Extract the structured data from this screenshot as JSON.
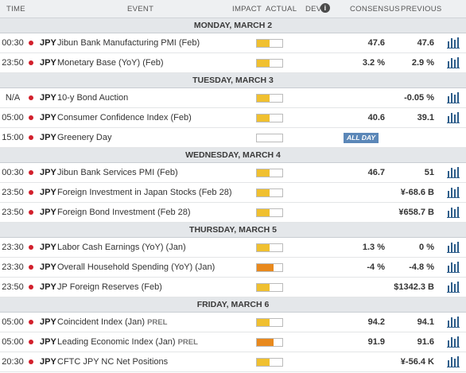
{
  "header": {
    "time": "TIME",
    "event": "EVENT",
    "impact": "IMPACT",
    "actual": "ACTUAL",
    "dev": "DEV",
    "info": "i",
    "consensus": "CONSENSUS",
    "previous": "PREVIOUS"
  },
  "days": [
    {
      "label": "MONDAY, MARCH 2",
      "events": [
        {
          "time": "00:30",
          "currency": "JPY",
          "name": "Jibun Bank Manufacturing PMI (Feb)",
          "prel": "",
          "impact": "medium",
          "impact_level": 0.5,
          "consensus": "47.6",
          "previous": "47.6",
          "all_day": "",
          "chart": true
        },
        {
          "time": "23:50",
          "currency": "JPY",
          "name": "Monetary Base (YoY) (Feb)",
          "prel": "",
          "impact": "medium",
          "impact_level": 0.5,
          "consensus": "3.2 %",
          "previous": "2.9 %",
          "all_day": "",
          "chart": true
        }
      ]
    },
    {
      "label": "TUESDAY, MARCH 3",
      "events": [
        {
          "time": "N/A",
          "currency": "JPY",
          "name": "10-y Bond Auction",
          "prel": "",
          "impact": "medium",
          "impact_level": 0.5,
          "consensus": "",
          "previous": "-0.05 %",
          "all_day": "",
          "chart": true
        },
        {
          "time": "05:00",
          "currency": "JPY",
          "name": "Consumer Confidence Index (Feb)",
          "prel": "",
          "impact": "medium",
          "impact_level": 0.5,
          "consensus": "40.6",
          "previous": "39.1",
          "all_day": "",
          "chart": true
        },
        {
          "time": "15:00",
          "currency": "JPY",
          "name": "Greenery Day",
          "prel": "",
          "impact": "none",
          "impact_level": 0,
          "consensus": "",
          "previous": "",
          "all_day": "ALL DAY",
          "chart": false
        }
      ]
    },
    {
      "label": "WEDNESDAY, MARCH 4",
      "events": [
        {
          "time": "00:30",
          "currency": "JPY",
          "name": "Jibun Bank Services PMI (Feb)",
          "prel": "",
          "impact": "medium",
          "impact_level": 0.5,
          "consensus": "46.7",
          "previous": "51",
          "all_day": "",
          "chart": true
        },
        {
          "time": "23:50",
          "currency": "JPY",
          "name": "Foreign Investment in Japan Stocks (Feb 28)",
          "prel": "",
          "impact": "medium",
          "impact_level": 0.5,
          "consensus": "",
          "previous": "¥-68.6 B",
          "all_day": "",
          "chart": true
        },
        {
          "time": "23:50",
          "currency": "JPY",
          "name": "Foreign Bond Investment (Feb 28)",
          "prel": "",
          "impact": "medium",
          "impact_level": 0.5,
          "consensus": "",
          "previous": "¥658.7 B",
          "all_day": "",
          "chart": true
        }
      ]
    },
    {
      "label": "THURSDAY, MARCH 5",
      "events": [
        {
          "time": "23:30",
          "currency": "JPY",
          "name": "Labor Cash Earnings (YoY) (Jan)",
          "prel": "",
          "impact": "medium",
          "impact_level": 0.5,
          "consensus": "1.3 %",
          "previous": "0 %",
          "all_day": "",
          "chart": true
        },
        {
          "time": "23:30",
          "currency": "JPY",
          "name": "Overall Household Spending (YoY) (Jan)",
          "prel": "",
          "impact": "high",
          "impact_level": 0.67,
          "consensus": "-4 %",
          "previous": "-4.8 %",
          "all_day": "",
          "chart": true
        },
        {
          "time": "23:50",
          "currency": "JPY",
          "name": "JP Foreign Reserves (Feb)",
          "prel": "",
          "impact": "medium",
          "impact_level": 0.5,
          "consensus": "",
          "previous": "$1342.3 B",
          "all_day": "",
          "chart": true
        }
      ]
    },
    {
      "label": "FRIDAY, MARCH 6",
      "events": [
        {
          "time": "05:00",
          "currency": "JPY",
          "name": "Coincident Index (Jan)",
          "prel": "PREL",
          "impact": "medium",
          "impact_level": 0.5,
          "consensus": "94.2",
          "previous": "94.1",
          "all_day": "",
          "chart": true
        },
        {
          "time": "05:00",
          "currency": "JPY",
          "name": "Leading Economic Index (Jan)",
          "prel": "PREL",
          "impact": "high",
          "impact_level": 0.67,
          "consensus": "91.9",
          "previous": "91.6",
          "all_day": "",
          "chart": true
        },
        {
          "time": "20:30",
          "currency": "JPY",
          "name": "CFTC JPY NC Net Positions",
          "prel": "",
          "impact": "medium",
          "impact_level": 0.5,
          "consensus": "",
          "previous": "¥-56.4 K",
          "all_day": "",
          "chart": true
        }
      ]
    }
  ],
  "colors": {
    "flag": "#d21f2b",
    "impact_medium": "#f0c030",
    "impact_high": "#e8891d",
    "all_day_badge": "#5b87b8",
    "chart_icon": "#2d5d8a"
  }
}
